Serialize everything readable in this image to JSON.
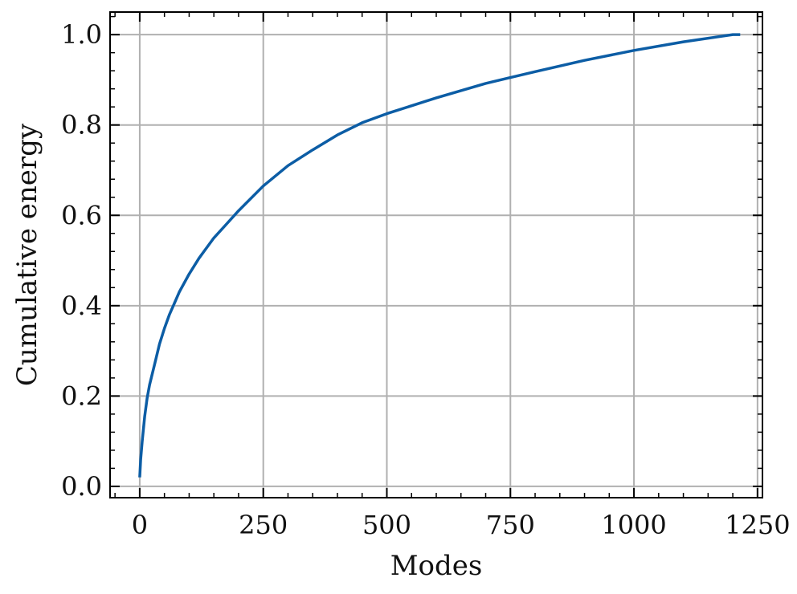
{
  "chart_data": {
    "type": "line",
    "title": "",
    "xlabel": "Modes",
    "ylabel": "Cumulative energy",
    "xlim": [
      -60,
      1260
    ],
    "ylim": [
      -0.025,
      1.05
    ],
    "xticks": [
      0,
      250,
      500,
      750,
      1000,
      1250
    ],
    "xtick_labels": [
      "0",
      "250",
      "500",
      "750",
      "1000",
      "1250"
    ],
    "yticks": [
      0.0,
      0.2,
      0.4,
      0.6,
      0.8,
      1.0
    ],
    "ytick_labels": [
      "0.0",
      "0.2",
      "0.4",
      "0.6",
      "0.8",
      "1.0"
    ],
    "grid": true,
    "series": [
      {
        "color": "#0c5da5",
        "x": [
          0,
          2,
          5,
          10,
          15,
          20,
          30,
          40,
          50,
          60,
          70,
          80,
          100,
          120,
          150,
          175,
          200,
          250,
          300,
          350,
          400,
          450,
          500,
          600,
          700,
          750,
          800,
          900,
          1000,
          1100,
          1200,
          1215
        ],
        "y": [
          0.02,
          0.06,
          0.1,
          0.155,
          0.195,
          0.225,
          0.27,
          0.315,
          0.35,
          0.38,
          0.405,
          0.43,
          0.47,
          0.505,
          0.55,
          0.58,
          0.61,
          0.665,
          0.71,
          0.745,
          0.778,
          0.805,
          0.825,
          0.86,
          0.892,
          0.905,
          0.918,
          0.943,
          0.965,
          0.984,
          1.0,
          1.0
        ]
      }
    ]
  }
}
